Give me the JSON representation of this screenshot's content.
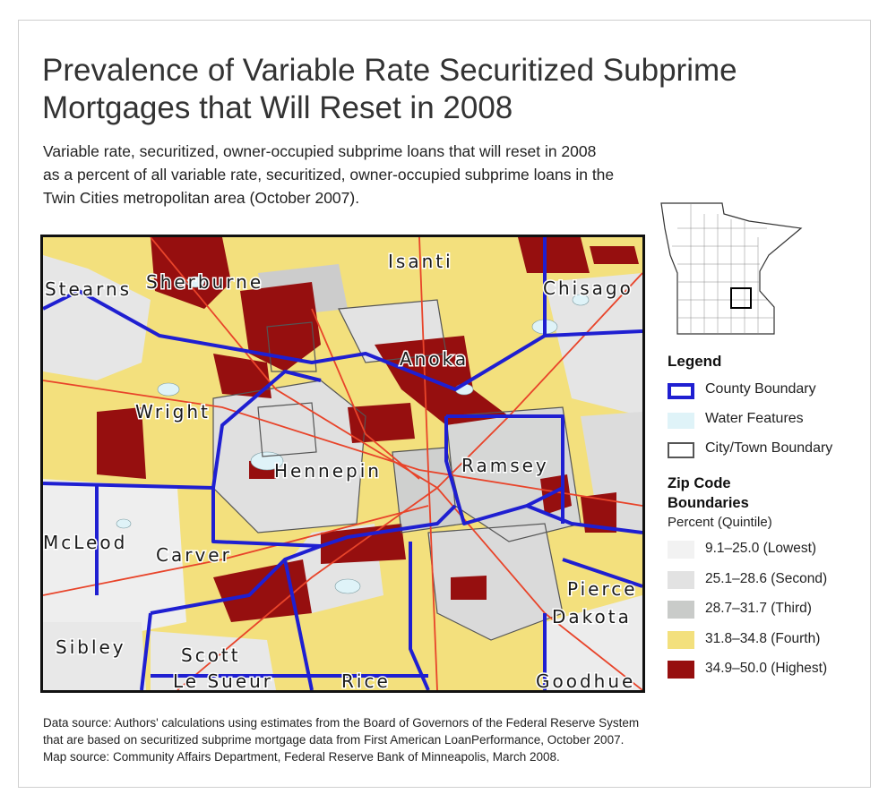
{
  "title": {
    "line1": "Prevalence of Variable Rate Securitized Subprime",
    "line2": "Mortgages that Will Reset in 2008"
  },
  "subtitle": {
    "line1": "Variable rate, securitized, owner-occupied subprime loans that will reset in 2008",
    "line2": "as a percent of all variable rate, securitized, owner-occupied subprime loans in the",
    "line3": "Twin Cities metropolitan area (October 2007)."
  },
  "map": {
    "county_labels": {
      "stearns": "Stearns",
      "sherburne": "Sherburne",
      "isanti": "Isanti",
      "chisago": "Chisago",
      "anoka": "Anoka",
      "wright": "Wright",
      "hennepin": "Hennepin",
      "ramsey": "Ramsey",
      "mcleod": "McLeod",
      "carver": "Carver",
      "pierce": "Pierce",
      "dakota": "Dakota",
      "sibley": "Sibley",
      "scott": "Scott",
      "le_sueur": "Le Sueur",
      "rice": "Rice",
      "goodhue": "Goodhue"
    },
    "colors": {
      "county_boundary": "#1f1fd1",
      "roads": "#e8442a",
      "water": "#dff3f8",
      "city_boundary": "#555555"
    }
  },
  "legend": {
    "title": "Legend",
    "items": [
      {
        "label": "County Boundary",
        "swatch": "county"
      },
      {
        "label": "Water Features",
        "swatch": "water"
      },
      {
        "label": "City/Town Boundary",
        "swatch": "city"
      }
    ],
    "zip_title_line1": "Zip Code",
    "zip_title_line2": "Boundaries",
    "zip_subtitle": "Percent (Quintile)",
    "quintiles": [
      {
        "label": "9.1–25.0 (Lowest)",
        "color": "#f2f2f2"
      },
      {
        "label": "25.1–28.6 (Second)",
        "color": "#e2e2e2"
      },
      {
        "label": "28.7–31.7 (Third)",
        "color": "#c9cbc9"
      },
      {
        "label": "31.8–34.8 (Fourth)",
        "color": "#f3e07d"
      },
      {
        "label": "34.9–50.0 (Highest)",
        "color": "#960f0f"
      }
    ]
  },
  "source": {
    "line1": "Data source: Authors' calculations using estimates from the Board of Governors of the Federal Reserve System",
    "line2": "that are based on securitized subprime mortgage data from First American LoanPerformance, October 2007.",
    "line3": "Map source: Community Affairs Department, Federal Reserve Bank of Minneapolis, March 2008."
  }
}
